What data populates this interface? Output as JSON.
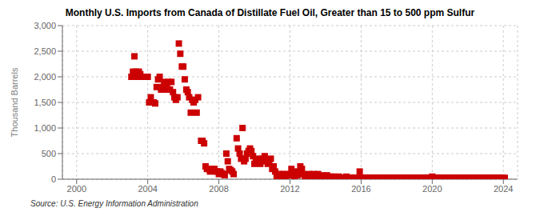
{
  "chart_data": {
    "type": "scatter",
    "title": "Monthly U.S. Imports from Canada of Distillate Fuel Oil, Greater than 15 to 500 ppm Sulfur",
    "y_label": "Thousand Barrels",
    "annotations": [
      "Source: U.S. Energy Information Administration"
    ],
    "color": "#CC0000",
    "marker": "square",
    "grid": true,
    "xlim": [
      1999.2,
      2024.8
    ],
    "xticks": [
      2000,
      2004,
      2008,
      2012,
      2016,
      2020,
      2024
    ],
    "ylim": [
      0,
      3000
    ],
    "yticks": [
      0,
      500,
      {
        "value": 1000,
        "label": "1,000"
      },
      {
        "value": 1500,
        "label": "1,500"
      },
      {
        "value": 2000,
        "label": "2,000"
      },
      {
        "value": 2500,
        "label": "2,500"
      },
      {
        "value": 3000,
        "label": "3,000"
      }
    ],
    "x": [
      2003.08,
      2003.17,
      2003.25,
      2003.33,
      2003.42,
      2003.5,
      2003.58,
      2003.67,
      2004.0,
      2004.08,
      2004.17,
      2004.25,
      2004.33,
      2004.42,
      2004.5,
      2004.58,
      2004.67,
      2004.75,
      2004.83,
      2004.92,
      2005.0,
      2005.08,
      2005.17,
      2005.25,
      2005.33,
      2005.42,
      2005.5,
      2005.58,
      2005.67,
      2005.75,
      2005.83,
      2005.92,
      2006.0,
      2006.08,
      2006.17,
      2006.25,
      2006.33,
      2006.42,
      2006.5,
      2006.58,
      2006.67,
      2006.75,
      2006.83,
      2007.0,
      2007.08,
      2007.17,
      2007.25,
      2007.33,
      2007.42,
      2007.5,
      2007.58,
      2007.67,
      2007.75,
      2007.83,
      2007.92,
      2008.0,
      2008.08,
      2008.17,
      2008.25,
      2008.33,
      2008.42,
      2008.5,
      2008.58,
      2008.67,
      2008.75,
      2008.83,
      2009.0,
      2009.08,
      2009.17,
      2009.25,
      2009.33,
      2009.42,
      2009.5,
      2009.58,
      2009.67,
      2009.75,
      2009.83,
      2009.92,
      2010.0,
      2010.08,
      2010.17,
      2010.25,
      2010.33,
      2010.42,
      2010.5,
      2010.58,
      2010.67,
      2010.75,
      2010.83,
      2010.92,
      2011.0,
      2011.08,
      2011.17,
      2011.25,
      2011.33,
      2011.42,
      2011.5,
      2011.58,
      2011.67,
      2011.75,
      2011.83,
      2011.92,
      2012.0,
      2012.08,
      2012.17,
      2012.25,
      2012.33,
      2012.42,
      2012.5,
      2012.58,
      2012.67,
      2012.75,
      2012.83,
      2012.92,
      2013.0,
      2013.08,
      2013.17,
      2013.25,
      2013.33,
      2013.42,
      2013.5,
      2013.58,
      2013.67,
      2013.75,
      2013.83,
      2013.92,
      2014.0,
      2014.08,
      2014.17,
      2014.25,
      2014.33,
      2014.42,
      2014.5,
      2014.58,
      2014.67,
      2014.75,
      2014.83,
      2014.92,
      2015.0,
      2015.08,
      2015.17,
      2015.25,
      2015.33,
      2015.42,
      2015.5,
      2015.58,
      2015.67,
      2015.75,
      2015.83,
      2015.92,
      2016.0,
      2016.08,
      2016.17,
      2016.25,
      2016.33,
      2016.42,
      2016.5,
      2016.58,
      2016.67,
      2016.75,
      2016.83,
      2016.92,
      2017.0,
      2017.08,
      2017.17,
      2017.25,
      2017.33,
      2017.42,
      2017.5,
      2017.58,
      2017.67,
      2017.75,
      2017.83,
      2017.92,
      2018.0,
      2018.08,
      2018.17,
      2018.25,
      2018.33,
      2018.42,
      2018.5,
      2018.58,
      2018.67,
      2018.75,
      2018.83,
      2018.92,
      2019.0,
      2019.08,
      2019.17,
      2019.25,
      2019.33,
      2019.42,
      2019.5,
      2019.58,
      2019.67,
      2019.75,
      2019.83,
      2019.92,
      2020.0,
      2020.08,
      2020.17,
      2020.25,
      2020.33,
      2020.42,
      2020.5,
      2020.58,
      2020.67,
      2020.75,
      2020.83,
      2020.92,
      2021.0,
      2021.08,
      2021.17,
      2021.25,
      2021.33,
      2021.42,
      2021.5,
      2021.58,
      2021.67,
      2021.75,
      2021.83,
      2021.92,
      2022.0,
      2022.08,
      2022.17,
      2022.25,
      2022.33,
      2022.42,
      2022.5,
      2022.58,
      2022.67,
      2022.75,
      2022.83,
      2022.92,
      2023.0,
      2023.08,
      2023.17,
      2023.25,
      2023.33,
      2023.42,
      2023.5,
      2023.58,
      2023.67,
      2023.75,
      2023.83,
      2023.92,
      2024.0,
      2024.08
    ],
    "values": [
      2000,
      2100,
      2400,
      2100,
      2000,
      2100,
      2050,
      2000,
      2000,
      1500,
      1600,
      1500,
      1500,
      1480,
      1800,
      1950,
      2000,
      1750,
      1800,
      1900,
      1750,
      1800,
      1900,
      1750,
      1900,
      1700,
      1600,
      1550,
      1600,
      2650,
      2450,
      2200,
      2200,
      1950,
      1750,
      1700,
      1600,
      1300,
      1550,
      1500,
      1550,
      1300,
      1600,
      750,
      750,
      700,
      250,
      200,
      200,
      150,
      175,
      200,
      200,
      150,
      150,
      100,
      150,
      120,
      100,
      80,
      500,
      350,
      200,
      175,
      150,
      100,
      800,
      600,
      500,
      400,
      1000,
      350,
      400,
      500,
      550,
      600,
      550,
      450,
      300,
      350,
      400,
      350,
      300,
      400,
      400,
      450,
      350,
      300,
      350,
      400,
      200,
      250,
      150,
      50,
      50,
      100,
      50,
      100,
      50,
      50,
      100,
      75,
      100,
      200,
      150,
      50,
      100,
      75,
      150,
      250,
      200,
      100,
      50,
      75,
      50,
      100,
      75,
      50,
      100,
      50,
      75,
      100,
      50,
      50,
      75,
      50,
      50,
      75,
      50,
      25,
      50,
      25,
      50,
      25,
      25,
      50,
      25,
      25,
      25,
      25,
      50,
      25,
      25,
      25,
      25,
      25,
      25,
      25,
      25,
      150,
      25,
      25,
      25,
      25,
      25,
      25,
      25,
      25,
      25,
      25,
      25,
      25,
      25,
      25,
      25,
      25,
      25,
      25,
      25,
      25,
      25,
      25,
      25,
      25,
      25,
      25,
      25,
      25,
      25,
      25,
      25,
      25,
      25,
      25,
      25,
      25,
      25,
      25,
      25,
      25,
      25,
      25,
      25,
      25,
      25,
      25,
      25,
      25,
      50,
      25,
      25,
      25,
      25,
      25,
      25,
      25,
      25,
      25,
      25,
      25,
      25,
      25,
      25,
      25,
      25,
      25,
      25,
      25,
      25,
      25,
      25,
      25,
      25,
      25,
      25,
      25,
      25,
      25,
      25,
      25,
      25,
      25,
      25,
      25,
      25,
      25,
      25,
      25,
      25,
      25,
      25,
      25,
      25,
      25,
      25,
      25,
      25,
      25
    ]
  }
}
